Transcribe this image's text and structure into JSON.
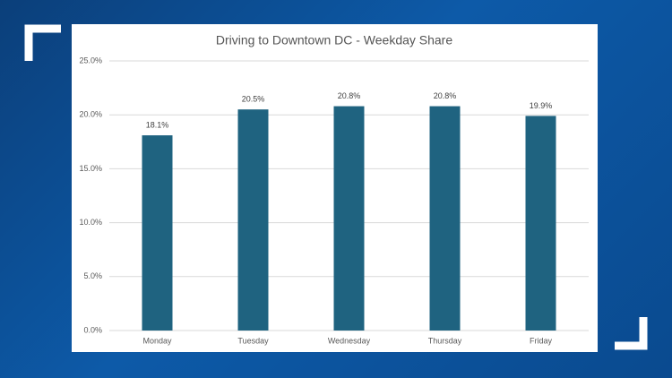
{
  "chart_data": {
    "type": "bar",
    "title": "Driving to Downtown DC - Weekday Share",
    "categories": [
      "Monday",
      "Tuesday",
      "Wednesday",
      "Thursday",
      "Friday"
    ],
    "values": [
      18.1,
      20.5,
      20.8,
      20.8,
      19.9
    ],
    "value_labels": [
      "18.1%",
      "20.5%",
      "20.8%",
      "20.8%",
      "19.9%"
    ],
    "color": "#1f6380",
    "ylim": [
      0,
      25
    ],
    "yticks": [
      {
        "value": 0,
        "label": "0.0%"
      },
      {
        "value": 5,
        "label": "5.0%"
      },
      {
        "value": 10,
        "label": "10.0%"
      },
      {
        "value": 15,
        "label": "15.0%"
      },
      {
        "value": 20,
        "label": "20.0%"
      },
      {
        "value": 25,
        "label": "25.0%"
      }
    ],
    "grid": true
  }
}
